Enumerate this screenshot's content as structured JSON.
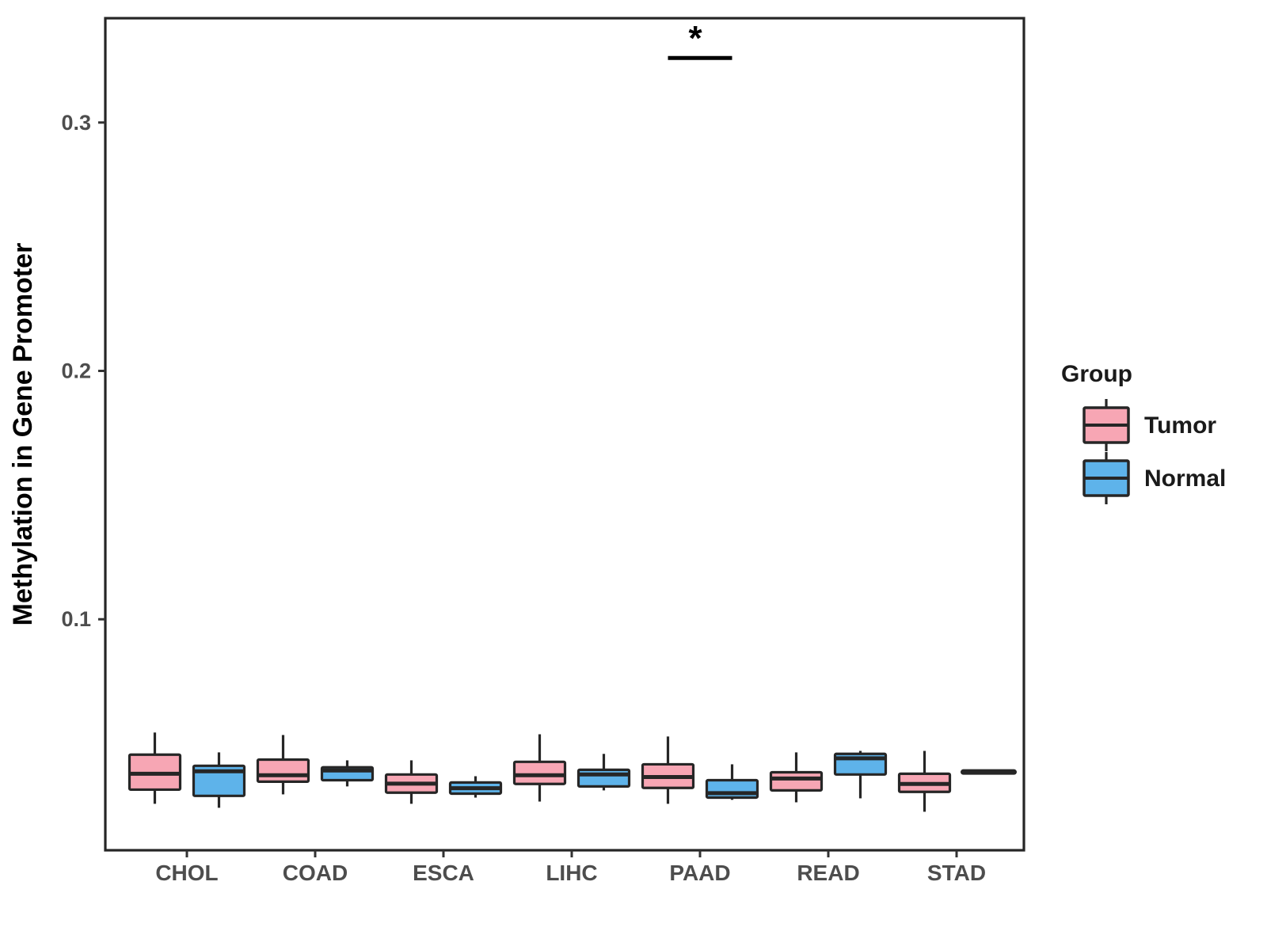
{
  "figure": {
    "background": "#FFFFFF"
  },
  "chart_data": {
    "type": "boxplot",
    "title": "",
    "xlabel": "",
    "ylabel": "Methylation in Gene Promoter",
    "categories": [
      "CHOL",
      "COAD",
      "ESCA",
      "LIHC",
      "PAAD",
      "READ",
      "STAD"
    ],
    "yticks": [
      0.1,
      0.2,
      0.3
    ],
    "ytick_labels": [
      "0.1",
      "0.2",
      "0.3"
    ],
    "ylim": [
      0.007,
      0.342
    ],
    "grid": false,
    "legend": {
      "title": "Group",
      "position": "right",
      "entries": [
        {
          "label": "Tumor",
          "color": "#F7A6B4"
        },
        {
          "label": "Normal",
          "color": "#5EB3EA"
        }
      ]
    },
    "series": [
      {
        "name": "Tumor",
        "color": "#F7A6B4",
        "boxes": [
          {
            "category": "CHOL",
            "whislo": 0.0257,
            "q1": 0.0314,
            "med": 0.0378,
            "q3": 0.0455,
            "whishi": 0.0544
          },
          {
            "category": "COAD",
            "whislo": 0.0295,
            "q1": 0.0346,
            "med": 0.0372,
            "q3": 0.0435,
            "whishi": 0.0534
          },
          {
            "category": "ESCA",
            "whislo": 0.0257,
            "q1": 0.0302,
            "med": 0.0338,
            "q3": 0.0375,
            "whishi": 0.0432
          },
          {
            "category": "LIHC",
            "whislo": 0.0266,
            "q1": 0.0337,
            "med": 0.0372,
            "q3": 0.0426,
            "whishi": 0.0537
          },
          {
            "category": "PAAD",
            "whislo": 0.0257,
            "q1": 0.0321,
            "med": 0.0365,
            "q3": 0.0416,
            "whishi": 0.0528
          },
          {
            "category": "READ",
            "whislo": 0.0263,
            "q1": 0.0311,
            "med": 0.0359,
            "q3": 0.0384,
            "whishi": 0.0464
          },
          {
            "category": "STAD",
            "whislo": 0.0225,
            "q1": 0.0305,
            "med": 0.0337,
            "q3": 0.0378,
            "whishi": 0.047
          }
        ]
      },
      {
        "name": "Normal",
        "color": "#5EB3EA",
        "boxes": [
          {
            "category": "CHOL",
            "whislo": 0.0241,
            "q1": 0.0289,
            "med": 0.0388,
            "q3": 0.041,
            "whishi": 0.0464
          },
          {
            "category": "COAD",
            "whislo": 0.0327,
            "q1": 0.0352,
            "med": 0.0391,
            "q3": 0.0404,
            "whishi": 0.0432
          },
          {
            "category": "ESCA",
            "whislo": 0.0282,
            "q1": 0.0298,
            "med": 0.032,
            "q3": 0.0343,
            "whishi": 0.0368
          },
          {
            "category": "LIHC",
            "whislo": 0.0311,
            "q1": 0.0327,
            "med": 0.0375,
            "q3": 0.0394,
            "whishi": 0.0458
          },
          {
            "category": "PAAD",
            "whislo": 0.0273,
            "q1": 0.0282,
            "med": 0.03,
            "q3": 0.0352,
            "whishi": 0.0416
          },
          {
            "category": "READ",
            "whislo": 0.0279,
            "q1": 0.0375,
            "med": 0.044,
            "q3": 0.0458,
            "whishi": 0.047
          },
          {
            "category": "STAD",
            "whislo": 0.0385,
            "q1": 0.0385,
            "med": 0.0385,
            "q3": 0.0385,
            "whishi": 0.0385
          }
        ]
      }
    ],
    "annotations": [
      {
        "label": "*",
        "category": "PAAD",
        "bar_y": 0.326
      }
    ],
    "colors": {
      "box_stroke": "#262626",
      "panel_border": "#262626",
      "tick_label": "#4D4D4D",
      "axis_title": "#000000",
      "annotation": "#000000",
      "legend_text": "#1A1A1A"
    }
  }
}
